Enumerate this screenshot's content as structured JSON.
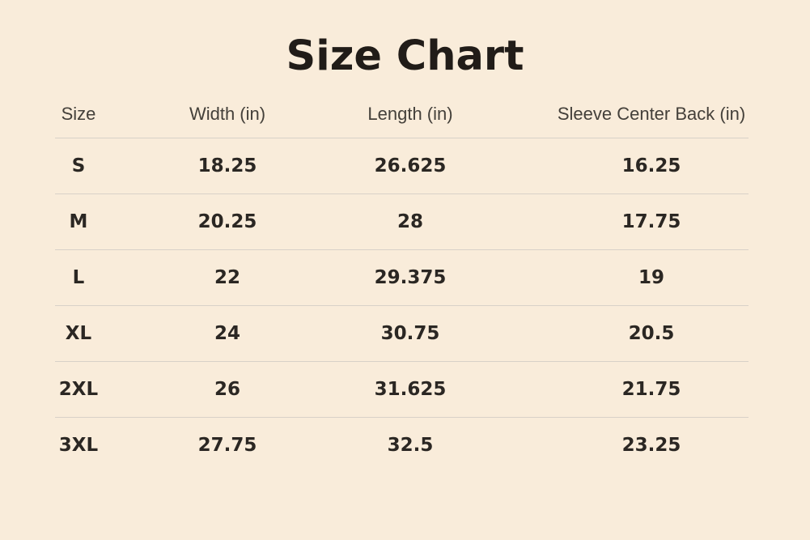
{
  "title": "Size Chart",
  "colors": {
    "background": "#f9ecda",
    "title_text": "#211c18",
    "header_text": "#44403a",
    "data_text": "#2b2723",
    "divider": "#d8d1c8"
  },
  "chart_data": {
    "type": "table",
    "title": "Size Chart",
    "columns": [
      "Size",
      "Width (in)",
      "Length (in)",
      "Sleeve Center Back (in)"
    ],
    "rows": [
      [
        "S",
        "18.25",
        "26.625",
        "16.25"
      ],
      [
        "M",
        "20.25",
        "28",
        "17.75"
      ],
      [
        "L",
        "22",
        "29.375",
        "19"
      ],
      [
        "XL",
        "24",
        "30.75",
        "20.5"
      ],
      [
        "2XL",
        "26",
        "31.625",
        "21.75"
      ],
      [
        "3XL",
        "27.75",
        "32.5",
        "23.25"
      ]
    ],
    "layout": {
      "grid": "horizontal dividers only, no outer border, no bottom border",
      "units": "inches"
    }
  }
}
